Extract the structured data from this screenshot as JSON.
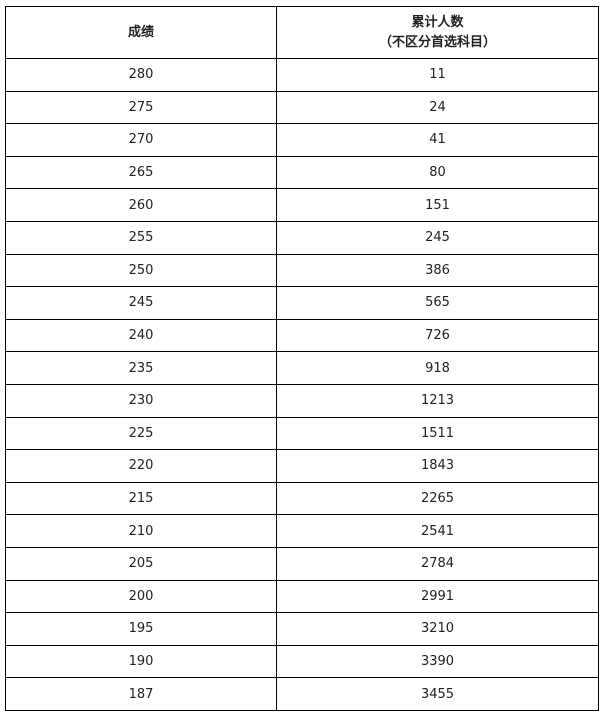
{
  "table": {
    "headers": [
      "成绩",
      "累计人数",
      "（不区分首选科目）"
    ],
    "rows": [
      [
        "280",
        "11"
      ],
      [
        "275",
        "24"
      ],
      [
        "270",
        "41"
      ],
      [
        "265",
        "80"
      ],
      [
        "260",
        "151"
      ],
      [
        "255",
        "245"
      ],
      [
        "250",
        "386"
      ],
      [
        "245",
        "565"
      ],
      [
        "240",
        "726"
      ],
      [
        "235",
        "918"
      ],
      [
        "230",
        "1213"
      ],
      [
        "225",
        "1511"
      ],
      [
        "220",
        "1843"
      ],
      [
        "215",
        "2265"
      ],
      [
        "210",
        "2541"
      ],
      [
        "205",
        "2784"
      ],
      [
        "200",
        "2991"
      ],
      [
        "195",
        "3210"
      ],
      [
        "190",
        "3390"
      ],
      [
        "187",
        "3455"
      ]
    ]
  }
}
